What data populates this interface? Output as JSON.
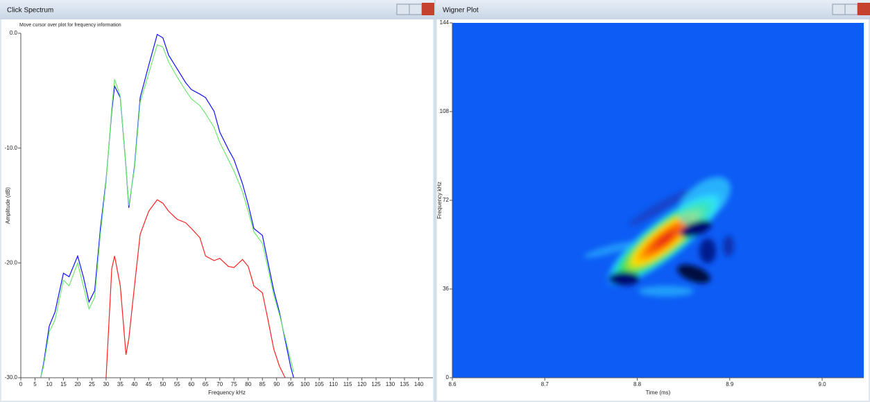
{
  "windows": [
    {
      "title": "Click Spectrum"
    },
    {
      "title": "Wigner Plot"
    }
  ],
  "chart_data": [
    {
      "type": "line",
      "subtitle": "Move cursor over plot for frequency information",
      "x_label": "Frequency kHz",
      "y_label": "Amplitude (dB)",
      "x": [
        7,
        8,
        10,
        12,
        15,
        17,
        20,
        22,
        24,
        26,
        28,
        30,
        32,
        33,
        35,
        37,
        38,
        40,
        42,
        45,
        48,
        50,
        52,
        55,
        58,
        60,
        63,
        65,
        68,
        70,
        73,
        75,
        78,
        80,
        82,
        85,
        87,
        89,
        91,
        93,
        95,
        96
      ],
      "series": [
        {
          "color": "#1010ff",
          "values": [
            -30,
            -28.8,
            -25.5,
            -24.3,
            -20.9,
            -21.2,
            -19.4,
            -21.2,
            -23.4,
            -22.4,
            -17,
            -12.8,
            -6.8,
            -4.6,
            -5.6,
            -11.6,
            -15.2,
            -11.6,
            -5.6,
            -2.8,
            -0.1,
            -0.4,
            -1.9,
            -3.1,
            -4.3,
            -4.9,
            -5.3,
            -5.6,
            -6.8,
            -8.6,
            -10.1,
            -11,
            -13.1,
            -14.9,
            -17,
            -17.6,
            -20,
            -22.4,
            -24.3,
            -26.7,
            -29.1,
            -30
          ]
        },
        {
          "color": "#6fe86f",
          "values": [
            -30,
            -29,
            -26,
            -25,
            -21.5,
            -22,
            -20,
            -22,
            -24,
            -23,
            -17.5,
            -13,
            -6.5,
            -4,
            -5.5,
            -11.5,
            -15,
            -11.8,
            -6,
            -3.5,
            -1,
            -1.2,
            -2.5,
            -3.8,
            -5,
            -5.7,
            -6.3,
            -7,
            -8.2,
            -9.5,
            -11,
            -12,
            -13.8,
            -15.5,
            -17.3,
            -18.3,
            -20.5,
            -22.8,
            -24.5,
            -26.5,
            -28.5,
            -29.5
          ]
        },
        {
          "color": "#ff2020",
          "values": [
            null,
            null,
            null,
            null,
            null,
            null,
            null,
            null,
            null,
            null,
            null,
            -30,
            -20.5,
            -19.4,
            -22,
            -28,
            -26.6,
            -22,
            -17.5,
            -15.5,
            -14.5,
            -14.8,
            -15.5,
            -16.2,
            -16.5,
            -17,
            -17.8,
            -19.4,
            -19.8,
            -19.6,
            -20.3,
            -20.4,
            -19.7,
            -20.3,
            -22,
            -22.6,
            -25,
            -27.5,
            -29,
            -30,
            null,
            null
          ]
        }
      ],
      "xlim": [
        0,
        145
      ],
      "xticks": [
        0,
        5,
        10,
        15,
        20,
        25,
        30,
        35,
        40,
        45,
        50,
        55,
        60,
        65,
        70,
        75,
        80,
        85,
        90,
        95,
        100,
        105,
        110,
        115,
        120,
        125,
        130,
        135,
        140
      ],
      "ylim": [
        -30,
        0
      ],
      "yticks": [
        {
          "value": -30,
          "label": "-30.0"
        },
        {
          "value": -20,
          "label": "-20.0"
        },
        {
          "value": -10,
          "label": "-10.0"
        },
        {
          "value": 0,
          "label": "0.0"
        }
      ]
    },
    {
      "type": "heatmap",
      "x_label": "Time (ms)",
      "y_label": "Frequency kHz",
      "background": "#0d5cf5",
      "xlim": [
        8.6,
        9.045
      ],
      "xticks": [
        8.6,
        8.7,
        8.8,
        8.9,
        {
          "value": 9,
          "label": "9.0"
        }
      ],
      "ylim": [
        0,
        144
      ],
      "yticks": [
        0,
        36,
        72,
        108,
        144
      ]
    }
  ]
}
